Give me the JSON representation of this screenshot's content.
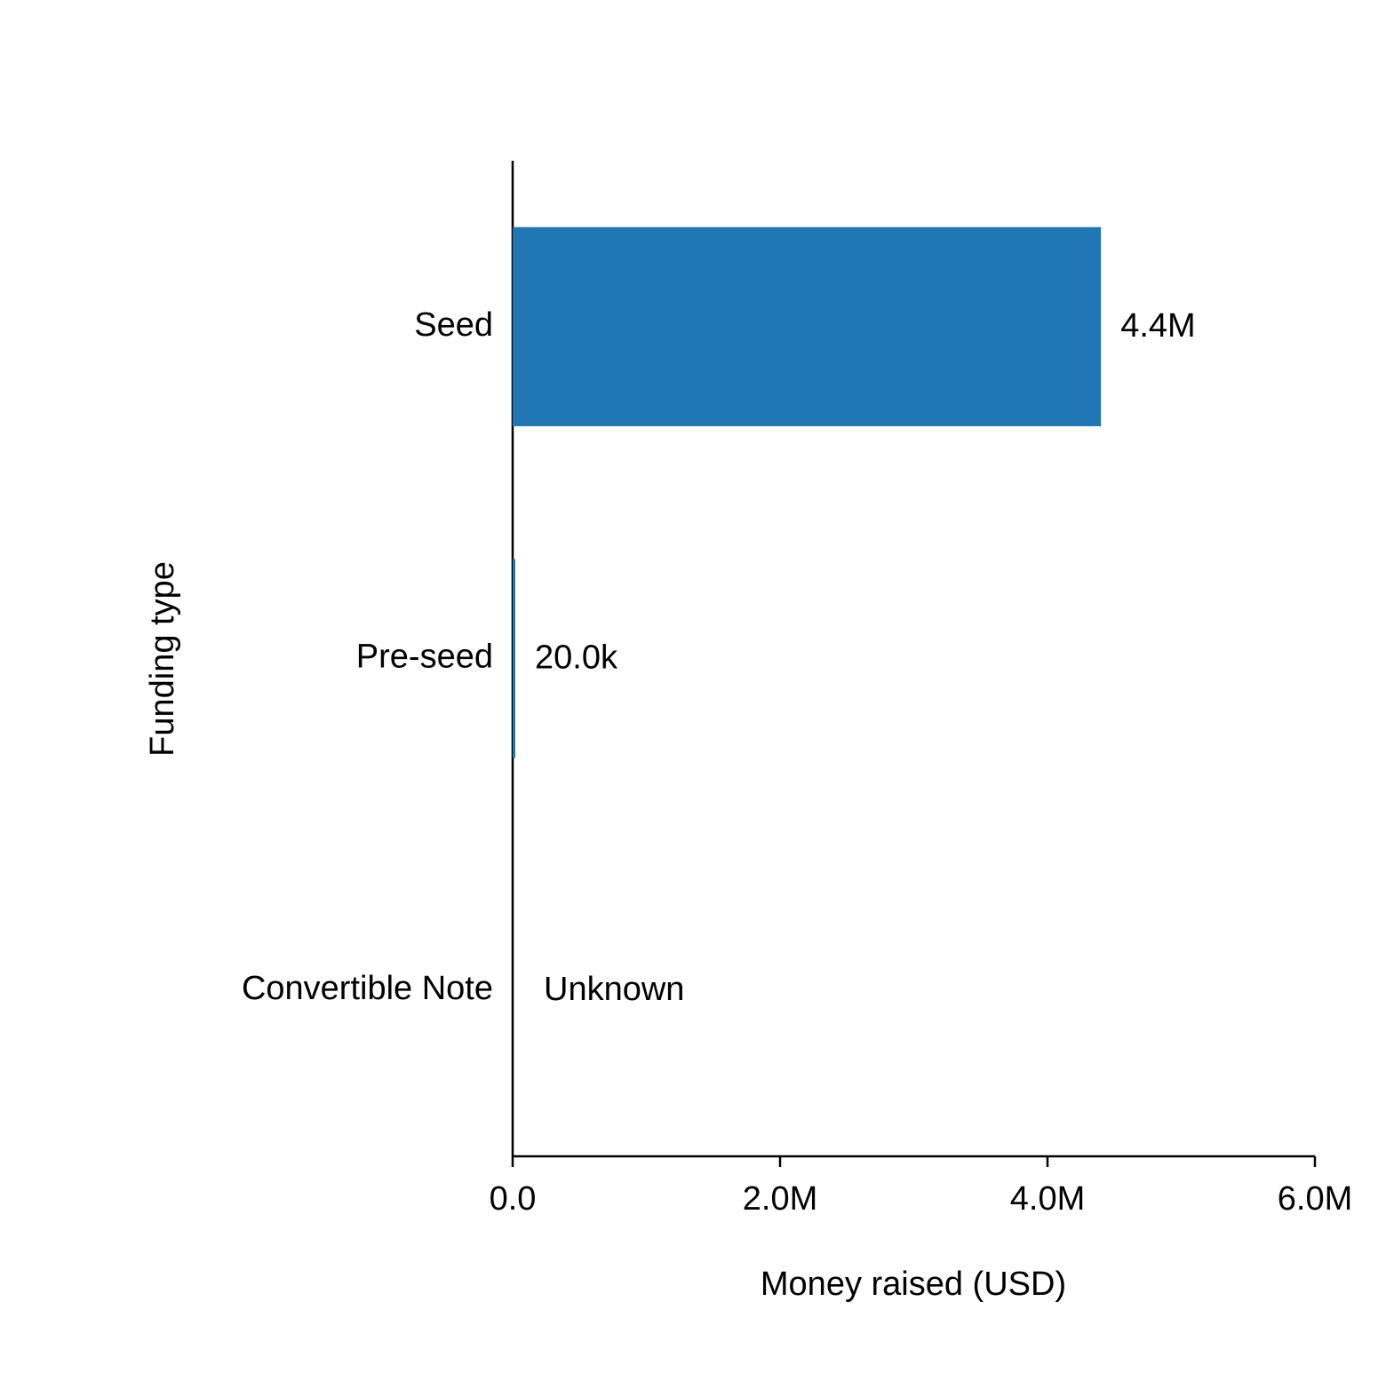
{
  "chart_data": {
    "type": "barh",
    "x_label": "Money raised (USD)",
    "y_label": "Funding type",
    "categories": [
      "Seed",
      "Pre-seed",
      "Convertible Note"
    ],
    "values": [
      4400000,
      20000,
      null
    ],
    "value_labels": [
      "4.4M",
      "20.0k",
      "Unknown"
    ],
    "color": "#2077b4",
    "xlim": [
      0,
      6000000
    ],
    "xticks": [
      {
        "value": 0,
        "label": "0.0"
      },
      {
        "value": 2000000,
        "label": "2.0M"
      },
      {
        "value": 4000000,
        "label": "4.0M"
      },
      {
        "value": 6000000,
        "label": "6.0M"
      }
    ],
    "grid": false
  }
}
